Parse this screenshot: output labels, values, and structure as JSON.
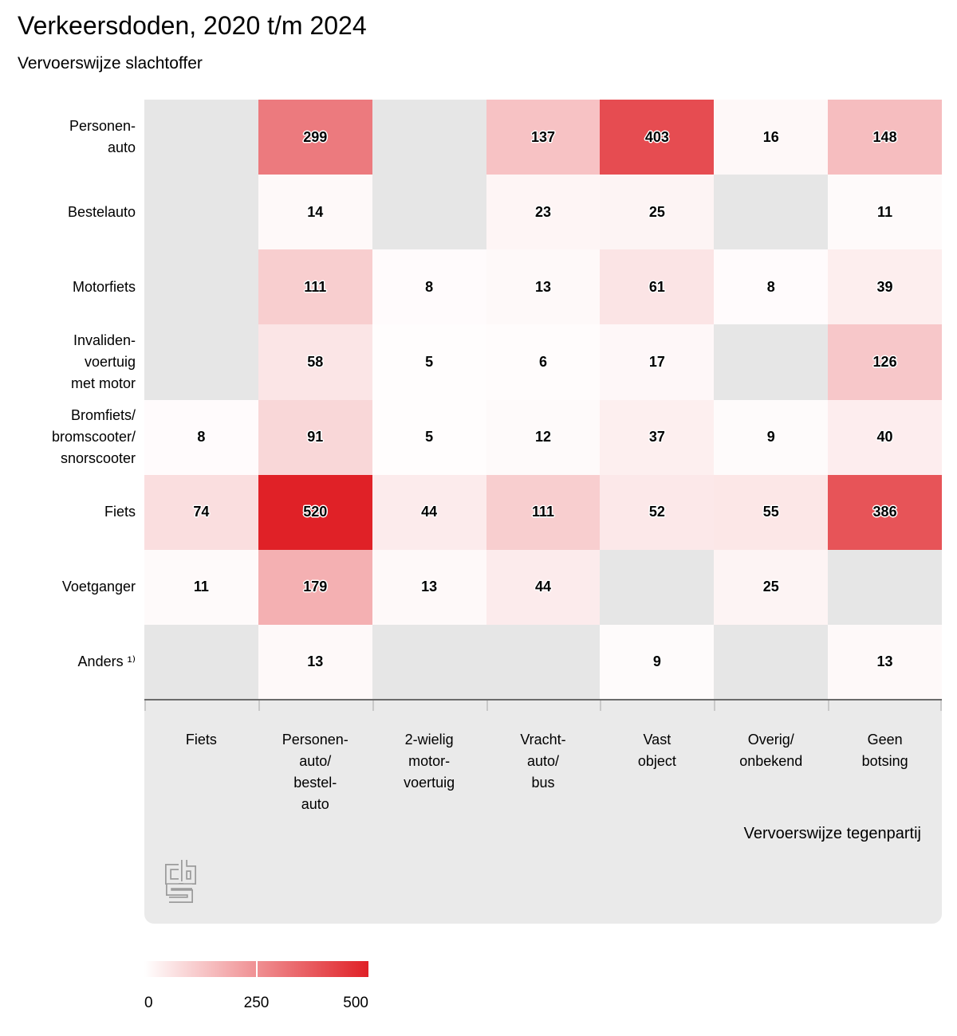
{
  "header": {
    "title": "Verkeersdoden, 2020 t/m 2024",
    "subtitle": "Vervoerswijze slachtoffer"
  },
  "chart_data": {
    "type": "heatmap",
    "title": "Verkeersdoden, 2020 t/m 2024",
    "ylabel": "Vervoerswijze slachtoffer",
    "xlabel": "Vervoerswijze tegenpartij",
    "rows": [
      "Personen-auto",
      "Bestelauto",
      "Motorfiets",
      "Invalidenvoertuig met motor",
      "Bromfiets/bromscooter/snorscooter",
      "Fiets",
      "Voetganger",
      "Anders 1)"
    ],
    "columns": [
      "Fiets",
      "Personenauto/bestelauto",
      "2-wielig motorvoertuig",
      "Vrachtauto/bus",
      "Vast object",
      "Overig/onbekend",
      "Geen botsing"
    ],
    "values": [
      [
        null,
        299,
        null,
        137,
        403,
        16,
        148
      ],
      [
        null,
        14,
        null,
        23,
        25,
        null,
        11
      ],
      [
        null,
        111,
        8,
        13,
        61,
        8,
        39
      ],
      [
        null,
        58,
        5,
        6,
        17,
        null,
        126
      ],
      [
        8,
        91,
        5,
        12,
        37,
        9,
        40
      ],
      [
        74,
        520,
        44,
        111,
        52,
        55,
        386
      ],
      [
        11,
        179,
        13,
        44,
        null,
        25,
        null
      ],
      [
        null,
        13,
        null,
        null,
        9,
        null,
        13
      ]
    ],
    "color_scale": {
      "min": 0,
      "max": 500,
      "min_color": "#ffffff",
      "max_color": "#e02127",
      "empty_color": "#e6e6e6"
    },
    "legend": {
      "ticks": [
        "0",
        "250",
        "500"
      ],
      "position": "bottom-left"
    },
    "grid": false
  },
  "display": {
    "row_labels": [
      "Personen-\nauto",
      "Bestelauto",
      "Motorfiets",
      "Invaliden-\nvoertuig\nmet motor",
      "Bromfiets/\nbromscooter/\nsnorscooter",
      "Fiets",
      "Voetganger",
      "Anders ¹⁾"
    ],
    "col_labels": [
      "Fiets",
      "Personen-\nauto/\nbestel-\nauto",
      "2-wielig\nmotor-\nvoertuig",
      "Vracht-\nauto/\nbus",
      "Vast\nobject",
      "Overig/\nonbekend",
      "Geen\nbotsing"
    ],
    "xlabel": "Vervoerswijze tegenpartij"
  },
  "branding": {
    "logo_name": "cbs-logo"
  },
  "colors": {
    "accent_red": "#e02127",
    "empty_cell": "#e6e6e6",
    "footer_bg": "#eaeaea",
    "axis_line": "#6b6b6b",
    "tick": "#c9c9c9"
  }
}
